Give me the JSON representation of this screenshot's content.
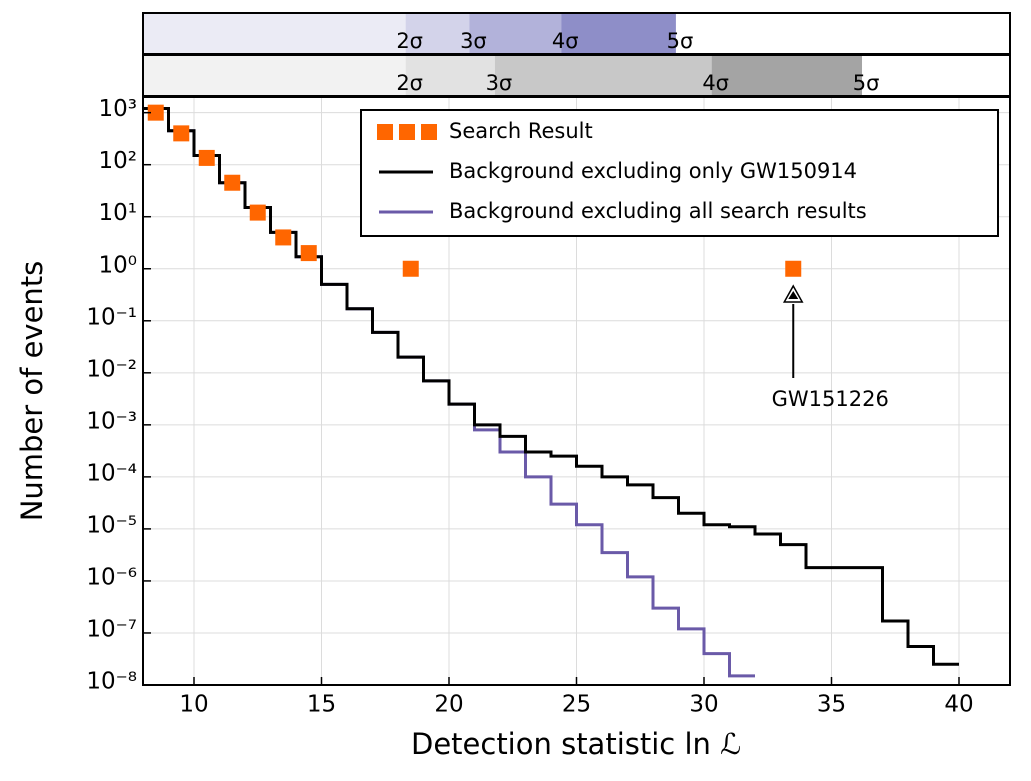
{
  "chart_data": {
    "type": "step",
    "xlabel": "Detection statistic ln ℒ",
    "ylabel": "Number of events",
    "xlim": [
      8,
      42
    ],
    "xticks": [
      10,
      15,
      20,
      25,
      30,
      35,
      40
    ],
    "ylim": [
      1e-08,
      2000
    ],
    "log_y": true,
    "yticks": [
      {
        "value": 1e-08,
        "label": "10⁻⁸"
      },
      {
        "value": 1e-07,
        "label": "10⁻⁷"
      },
      {
        "value": 1e-06,
        "label": "10⁻⁶"
      },
      {
        "value": 1e-05,
        "label": "10⁻⁵"
      },
      {
        "value": 0.0001,
        "label": "10⁻⁴"
      },
      {
        "value": 0.001,
        "label": "10⁻³"
      },
      {
        "value": 0.01,
        "label": "10⁻²"
      },
      {
        "value": 0.1,
        "label": "10⁻¹"
      },
      {
        "value": 1,
        "label": "10⁰"
      },
      {
        "value": 10,
        "label": "10¹"
      },
      {
        "value": 100,
        "label": "10²"
      },
      {
        "value": 1000,
        "label": "10³"
      }
    ],
    "grid": true,
    "legend": "upper right",
    "series": [
      {
        "name": "Search Result",
        "type": "scatter",
        "color": "#ff6600",
        "x": [
          8.5,
          9.5,
          10.5,
          11.5,
          12.5,
          13.5,
          14.5,
          18.5,
          33.5
        ],
        "values": [
          1000,
          400,
          135,
          45,
          12,
          4,
          2,
          1,
          1
        ]
      },
      {
        "name": "Background excluding only GW150914",
        "type": "step",
        "color": "#000000",
        "bins": [
          8,
          9,
          10,
          11,
          12,
          13,
          14,
          15,
          16,
          17,
          18,
          19,
          20,
          21,
          22,
          23,
          24,
          25,
          26,
          27,
          28,
          29,
          30,
          31,
          32,
          33,
          34,
          35,
          36,
          37,
          38,
          39,
          40
        ],
        "values": [
          1200,
          450,
          150,
          45,
          15,
          5,
          1.7,
          0.5,
          0.17,
          0.06,
          0.02,
          0.007,
          0.0025,
          0.001,
          0.0006,
          0.0003,
          0.00025,
          0.00016,
          0.0001,
          7e-05,
          4e-05,
          2e-05,
          1.2e-05,
          1.1e-05,
          8e-06,
          5e-06,
          1.8e-06,
          1.8e-06,
          1.8e-06,
          1.7e-07,
          5.5e-08,
          2.5e-08
        ]
      },
      {
        "name": "Background excluding all search results",
        "type": "step",
        "color": "#6a5aa8",
        "bins": [
          8,
          9,
          10,
          11,
          12,
          13,
          14,
          15,
          16,
          17,
          18,
          19,
          20,
          21,
          22,
          23,
          24,
          25,
          26,
          27,
          28,
          29,
          30,
          31,
          32
        ],
        "values": [
          1200,
          450,
          150,
          45,
          15,
          5,
          1.7,
          0.5,
          0.17,
          0.06,
          0.02,
          0.007,
          0.0025,
          0.0008,
          0.0003,
          0.0001,
          3e-05,
          1.2e-05,
          3.5e-06,
          1.2e-06,
          3e-07,
          1.2e-07,
          4e-08,
          1.5e-08
        ]
      }
    ],
    "annotation": {
      "text": "GW151226",
      "x": 33.5,
      "y": 0.3
    },
    "significance_bands": [
      {
        "thresholds": [
          18.3,
          20.8,
          24.4,
          28.9
        ],
        "labels": [
          "2σ",
          "3σ",
          "4σ",
          "5σ"
        ],
        "colors": [
          "#ebebf5",
          "#d3d3ea",
          "#b2b2da",
          "#8e8ec8",
          "#ffffff"
        ]
      },
      {
        "thresholds": [
          18.3,
          21.8,
          30.3,
          36.2
        ],
        "labels": [
          "2σ",
          "3σ",
          "4σ",
          "5σ"
        ],
        "colors": [
          "#f2f2f2",
          "#e2e2e2",
          "#c8c8c8",
          "#a4a4a4",
          "#ffffff"
        ]
      }
    ]
  }
}
